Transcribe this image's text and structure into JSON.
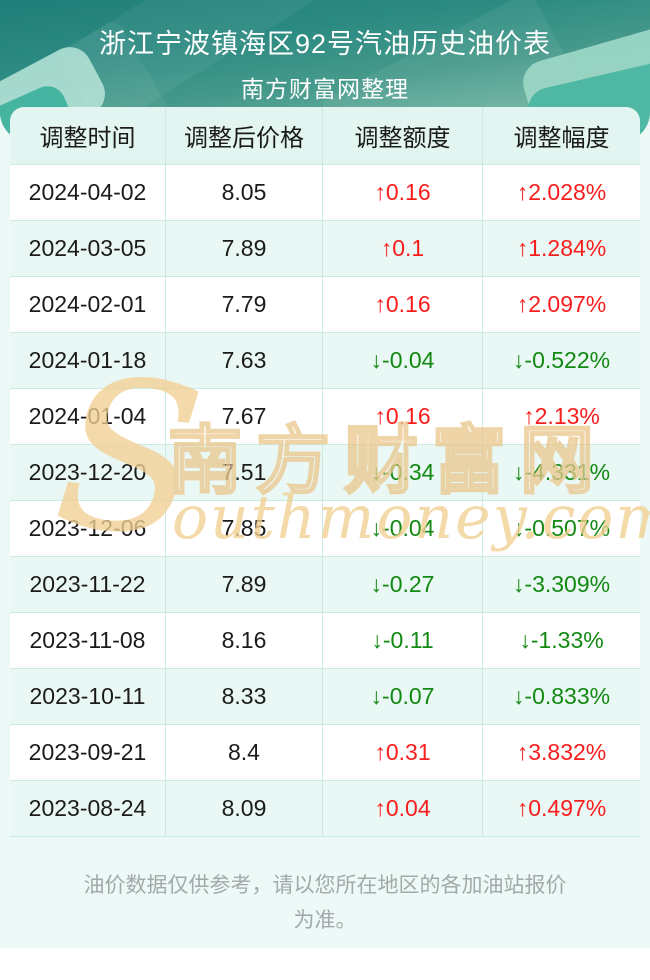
{
  "header": {
    "title": "浙江宁波镇海区92号汽油历史油价表",
    "subtitle": "南方财富网整理"
  },
  "table": {
    "columns": [
      "调整时间",
      "调整后价格",
      "调整额度",
      "调整幅度"
    ],
    "rows": [
      {
        "date": "2024-04-02",
        "price": "8.05",
        "change": "↑0.16",
        "percent": "↑2.028%",
        "direction": "up"
      },
      {
        "date": "2024-03-05",
        "price": "7.89",
        "change": "↑0.1",
        "percent": "↑1.284%",
        "direction": "up"
      },
      {
        "date": "2024-02-01",
        "price": "7.79",
        "change": "↑0.16",
        "percent": "↑2.097%",
        "direction": "up"
      },
      {
        "date": "2024-01-18",
        "price": "7.63",
        "change": "↓-0.04",
        "percent": "↓-0.522%",
        "direction": "down"
      },
      {
        "date": "2024-01-04",
        "price": "7.67",
        "change": "↑0.16",
        "percent": "↑2.13%",
        "direction": "up"
      },
      {
        "date": "2023-12-20",
        "price": "7.51",
        "change": "↓-0.34",
        "percent": "↓-4.331%",
        "direction": "down"
      },
      {
        "date": "2023-12-06",
        "price": "7.85",
        "change": "↓-0.04",
        "percent": "↓-0.507%",
        "direction": "down"
      },
      {
        "date": "2023-11-22",
        "price": "7.89",
        "change": "↓-0.27",
        "percent": "↓-3.309%",
        "direction": "down"
      },
      {
        "date": "2023-11-08",
        "price": "8.16",
        "change": "↓-0.11",
        "percent": "↓-1.33%",
        "direction": "down"
      },
      {
        "date": "2023-10-11",
        "price": "8.33",
        "change": "↓-0.07",
        "percent": "↓-0.833%",
        "direction": "down"
      },
      {
        "date": "2023-09-21",
        "price": "8.4",
        "change": "↑0.31",
        "percent": "↑3.832%",
        "direction": "up"
      },
      {
        "date": "2023-08-24",
        "price": "8.09",
        "change": "↑0.04",
        "percent": "↑0.497%",
        "direction": "up"
      }
    ]
  },
  "watermark": {
    "s": "S",
    "zh": "南方财富网",
    "en": "outhmoney.com"
  },
  "footer": {
    "note": "油价数据仅供参考，请以您所在地区的各加油站报价为准。"
  },
  "colors": {
    "up": "#f91d1d",
    "down": "#128912",
    "banner_top": "#1f7e78",
    "banner_bottom": "#97ccb9",
    "row_alt": "#e9f8f4",
    "table_border": "#c9ebe3",
    "header_row_bg": "#e2f5f0",
    "watermark_tan": "#f2cf92"
  }
}
